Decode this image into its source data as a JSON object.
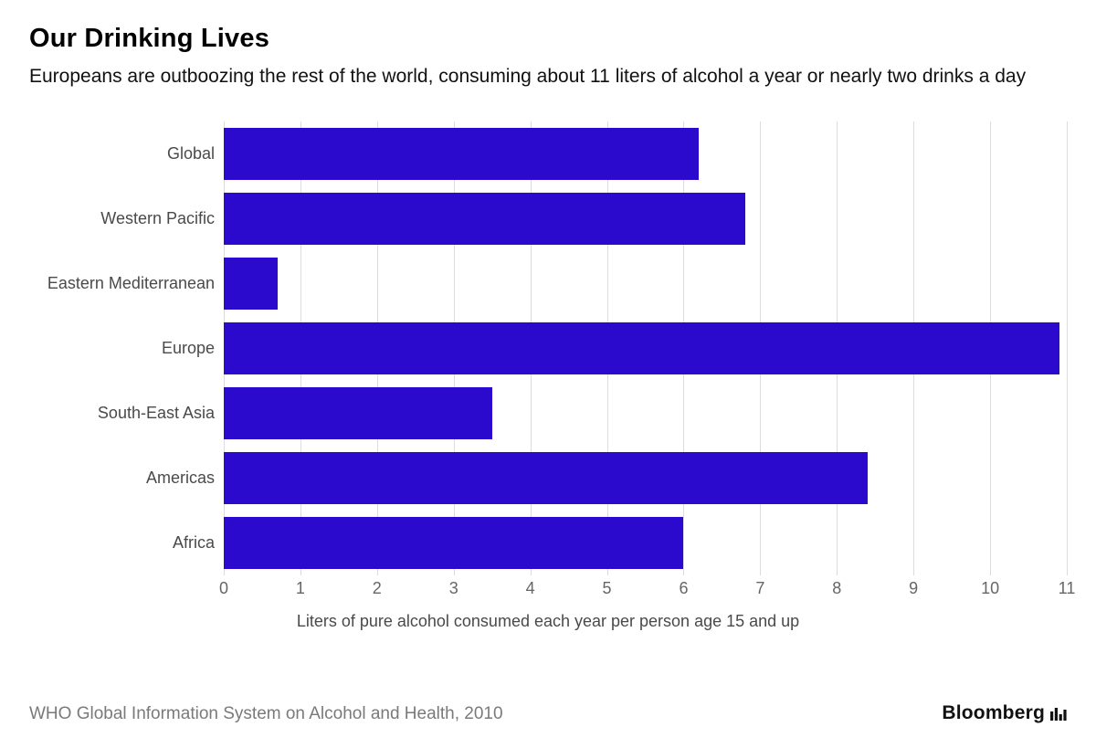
{
  "header": {
    "title": "Our Drinking Lives",
    "subtitle": "Europeans are outboozing the rest of the world, consuming about 11 liters of alcohol a year or nearly two drinks a day"
  },
  "chart_data": {
    "type": "bar",
    "orientation": "horizontal",
    "title": "Our Drinking Lives",
    "categories": [
      "Global",
      "Western Pacific",
      "Eastern Mediterranean",
      "Europe",
      "South-East Asia",
      "Americas",
      "Africa"
    ],
    "values": [
      6.2,
      6.8,
      0.7,
      10.9,
      3.5,
      8.4,
      6.0
    ],
    "xlabel": "Liters of pure alcohol consumed each year per person age 15 and up",
    "ylabel": "",
    "xlim": [
      0,
      11
    ],
    "xticks": [
      0,
      1,
      2,
      3,
      4,
      5,
      6,
      7,
      8,
      9,
      10,
      11
    ],
    "grid": true,
    "legend": "none",
    "bar_color": "#2b0acd",
    "gridline_color": "#dcdcdc"
  },
  "footer": {
    "source": "WHO Global Information System on Alcohol and Health, 2010",
    "brand": "Bloomberg"
  }
}
